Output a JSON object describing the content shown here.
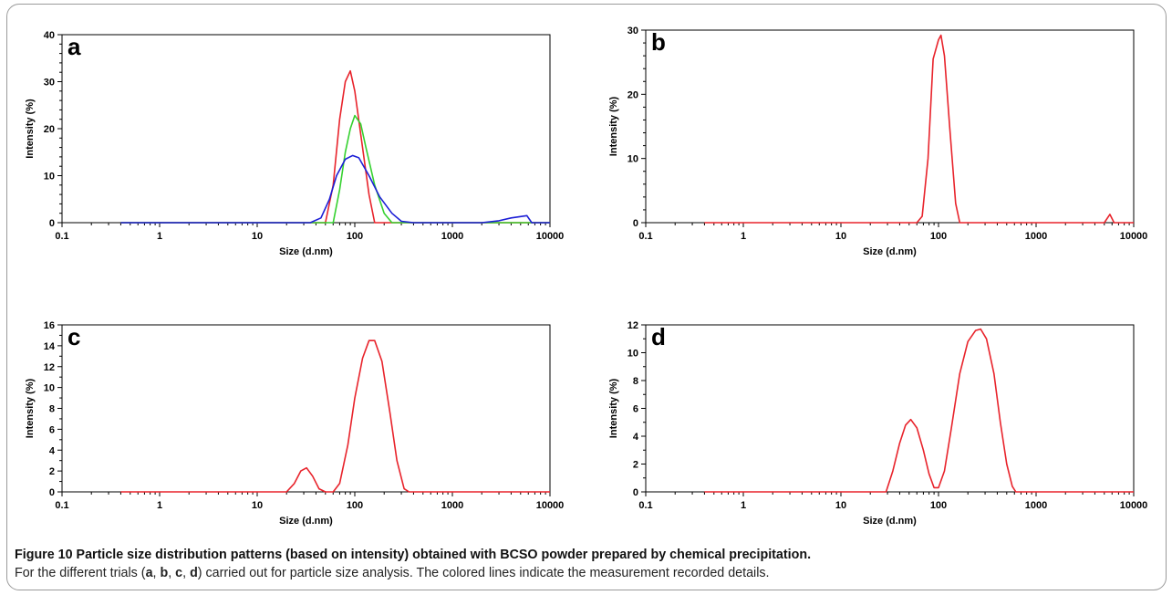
{
  "chart_data": [
    {
      "type": "line",
      "panel_label": "a",
      "xlabel": "Size (d.nm)",
      "ylabel": "Intensity (%)",
      "x_scale": "log",
      "xlim": [
        0.1,
        10000
      ],
      "ylim": [
        0,
        40
      ],
      "x_ticks": [
        0.1,
        1,
        10,
        100,
        1000,
        10000
      ],
      "x_tick_labels": [
        "0.1",
        "1",
        "10",
        "100",
        "1000",
        "10000"
      ],
      "y_ticks": [
        0,
        10,
        20,
        30,
        40
      ],
      "y_tick_labels": [
        "0",
        "10",
        "20",
        "30",
        "40"
      ],
      "series": [
        {
          "color": "#e8232b",
          "points": [
            [
              0.4,
              0
            ],
            [
              40,
              0
            ],
            [
              50,
              0
            ],
            [
              60,
              8
            ],
            [
              70,
              22
            ],
            [
              80,
              30
            ],
            [
              90,
              32.3
            ],
            [
              100,
              28
            ],
            [
              120,
              16
            ],
            [
              140,
              6
            ],
            [
              160,
              0
            ],
            [
              200,
              0
            ],
            [
              1000,
              0
            ],
            [
              10000,
              0
            ]
          ]
        },
        {
          "color": "#35d12f",
          "points": [
            [
              0.4,
              0
            ],
            [
              50,
              0
            ],
            [
              60,
              0
            ],
            [
              70,
              7
            ],
            [
              80,
              15
            ],
            [
              90,
              20
            ],
            [
              100,
              22.8
            ],
            [
              115,
              21
            ],
            [
              130,
              16
            ],
            [
              160,
              8
            ],
            [
              200,
              2
            ],
            [
              240,
              0
            ],
            [
              1000,
              0
            ],
            [
              10000,
              0
            ]
          ]
        },
        {
          "color": "#1c1ed6",
          "points": [
            [
              0.4,
              0
            ],
            [
              35,
              0
            ],
            [
              45,
              1
            ],
            [
              55,
              5
            ],
            [
              65,
              10
            ],
            [
              80,
              13.5
            ],
            [
              95,
              14.3
            ],
            [
              110,
              13.8
            ],
            [
              140,
              10
            ],
            [
              180,
              5.5
            ],
            [
              240,
              2
            ],
            [
              300,
              0.3
            ],
            [
              400,
              0
            ],
            [
              2000,
              0
            ],
            [
              3000,
              0.4
            ],
            [
              4000,
              1
            ],
            [
              5000,
              1.3
            ],
            [
              5800,
              1.5
            ],
            [
              6500,
              0
            ],
            [
              10000,
              0
            ]
          ]
        }
      ]
    },
    {
      "type": "line",
      "panel_label": "b",
      "xlabel": "Size (d.nm)",
      "ylabel": "Intensity (%)",
      "x_scale": "log",
      "xlim": [
        0.1,
        10000
      ],
      "ylim": [
        0,
        30
      ],
      "x_ticks": [
        0.1,
        1,
        10,
        100,
        1000,
        10000
      ],
      "x_tick_labels": [
        "0.1",
        "1",
        "10",
        "100",
        "1000",
        "10000"
      ],
      "y_ticks": [
        0,
        10,
        20,
        30
      ],
      "y_tick_labels": [
        "0",
        "10",
        "20",
        "30"
      ],
      "series": [
        {
          "color": "#e8232b",
          "points": [
            [
              0.4,
              0
            ],
            [
              60,
              0
            ],
            [
              68,
              1
            ],
            [
              78,
              10
            ],
            [
              88,
              25.5
            ],
            [
              100,
              28.5
            ],
            [
              106,
              29.2
            ],
            [
              115,
              26
            ],
            [
              130,
              15
            ],
            [
              150,
              3
            ],
            [
              165,
              0
            ],
            [
              5000,
              0
            ],
            [
              5700,
              1.3
            ],
            [
              6300,
              0
            ],
            [
              10000,
              0
            ]
          ]
        }
      ]
    },
    {
      "type": "line",
      "panel_label": "c",
      "xlabel": "Size (d.nm)",
      "ylabel": "Intensity (%)",
      "x_scale": "log",
      "xlim": [
        0.1,
        10000
      ],
      "ylim": [
        0,
        16
      ],
      "x_ticks": [
        0.1,
        1,
        10,
        100,
        1000,
        10000
      ],
      "x_tick_labels": [
        "0.1",
        "1",
        "10",
        "100",
        "1000",
        "10000"
      ],
      "y_ticks": [
        0,
        2,
        4,
        6,
        8,
        10,
        12,
        14,
        16
      ],
      "y_tick_labels": [
        "0",
        "2",
        "4",
        "6",
        "8",
        "10",
        "12",
        "14",
        "16"
      ],
      "series": [
        {
          "color": "#e8232b",
          "points": [
            [
              0.4,
              0
            ],
            [
              20,
              0
            ],
            [
              24,
              0.8
            ],
            [
              28,
              2
            ],
            [
              32,
              2.3
            ],
            [
              37,
              1.5
            ],
            [
              43,
              0.3
            ],
            [
              50,
              0
            ],
            [
              60,
              0
            ],
            [
              70,
              0.8
            ],
            [
              85,
              4.5
            ],
            [
              100,
              9
            ],
            [
              120,
              12.8
            ],
            [
              140,
              14.5
            ],
            [
              160,
              14.5
            ],
            [
              190,
              12.5
            ],
            [
              230,
              7.5
            ],
            [
              270,
              3
            ],
            [
              320,
              0.3
            ],
            [
              360,
              0
            ],
            [
              10000,
              0
            ]
          ]
        }
      ]
    },
    {
      "type": "line",
      "panel_label": "d",
      "xlabel": "Size (d.nm)",
      "ylabel": "Intensity (%)",
      "x_scale": "log",
      "xlim": [
        0.1,
        10000
      ],
      "ylim": [
        0,
        12
      ],
      "x_ticks": [
        0.1,
        1,
        10,
        100,
        1000,
        10000
      ],
      "x_tick_labels": [
        "0.1",
        "1",
        "10",
        "100",
        "1000",
        "10000"
      ],
      "y_ticks": [
        0,
        2,
        4,
        6,
        8,
        10,
        12
      ],
      "y_tick_labels": [
        "0",
        "2",
        "4",
        "6",
        "8",
        "10",
        "12"
      ],
      "series": [
        {
          "color": "#e8232b",
          "points": [
            [
              0.4,
              0
            ],
            [
              29,
              0
            ],
            [
              34,
              1.5
            ],
            [
              40,
              3.5
            ],
            [
              46,
              4.8
            ],
            [
              52,
              5.2
            ],
            [
              60,
              4.6
            ],
            [
              70,
              3
            ],
            [
              80,
              1.3
            ],
            [
              90,
              0.3
            ],
            [
              100,
              0.3
            ],
            [
              115,
              1.5
            ],
            [
              135,
              4.5
            ],
            [
              165,
              8.5
            ],
            [
              200,
              10.8
            ],
            [
              240,
              11.6
            ],
            [
              270,
              11.7
            ],
            [
              310,
              11
            ],
            [
              370,
              8.5
            ],
            [
              430,
              5
            ],
            [
              500,
              2
            ],
            [
              570,
              0.4
            ],
            [
              620,
              0
            ],
            [
              10000,
              0
            ]
          ]
        }
      ]
    }
  ],
  "caption": {
    "title": "Figure 10 Particle size distribution patterns (based on intensity) obtained with BCSO powder prepared by chemical precipitation.",
    "body_prefix": "For the different trials (",
    "labels": [
      "a",
      "b",
      "c",
      "d"
    ],
    "separator": ", ",
    "body_suffix": ") carried out for particle size analysis. The colored lines indicate the measurement recorded details."
  }
}
